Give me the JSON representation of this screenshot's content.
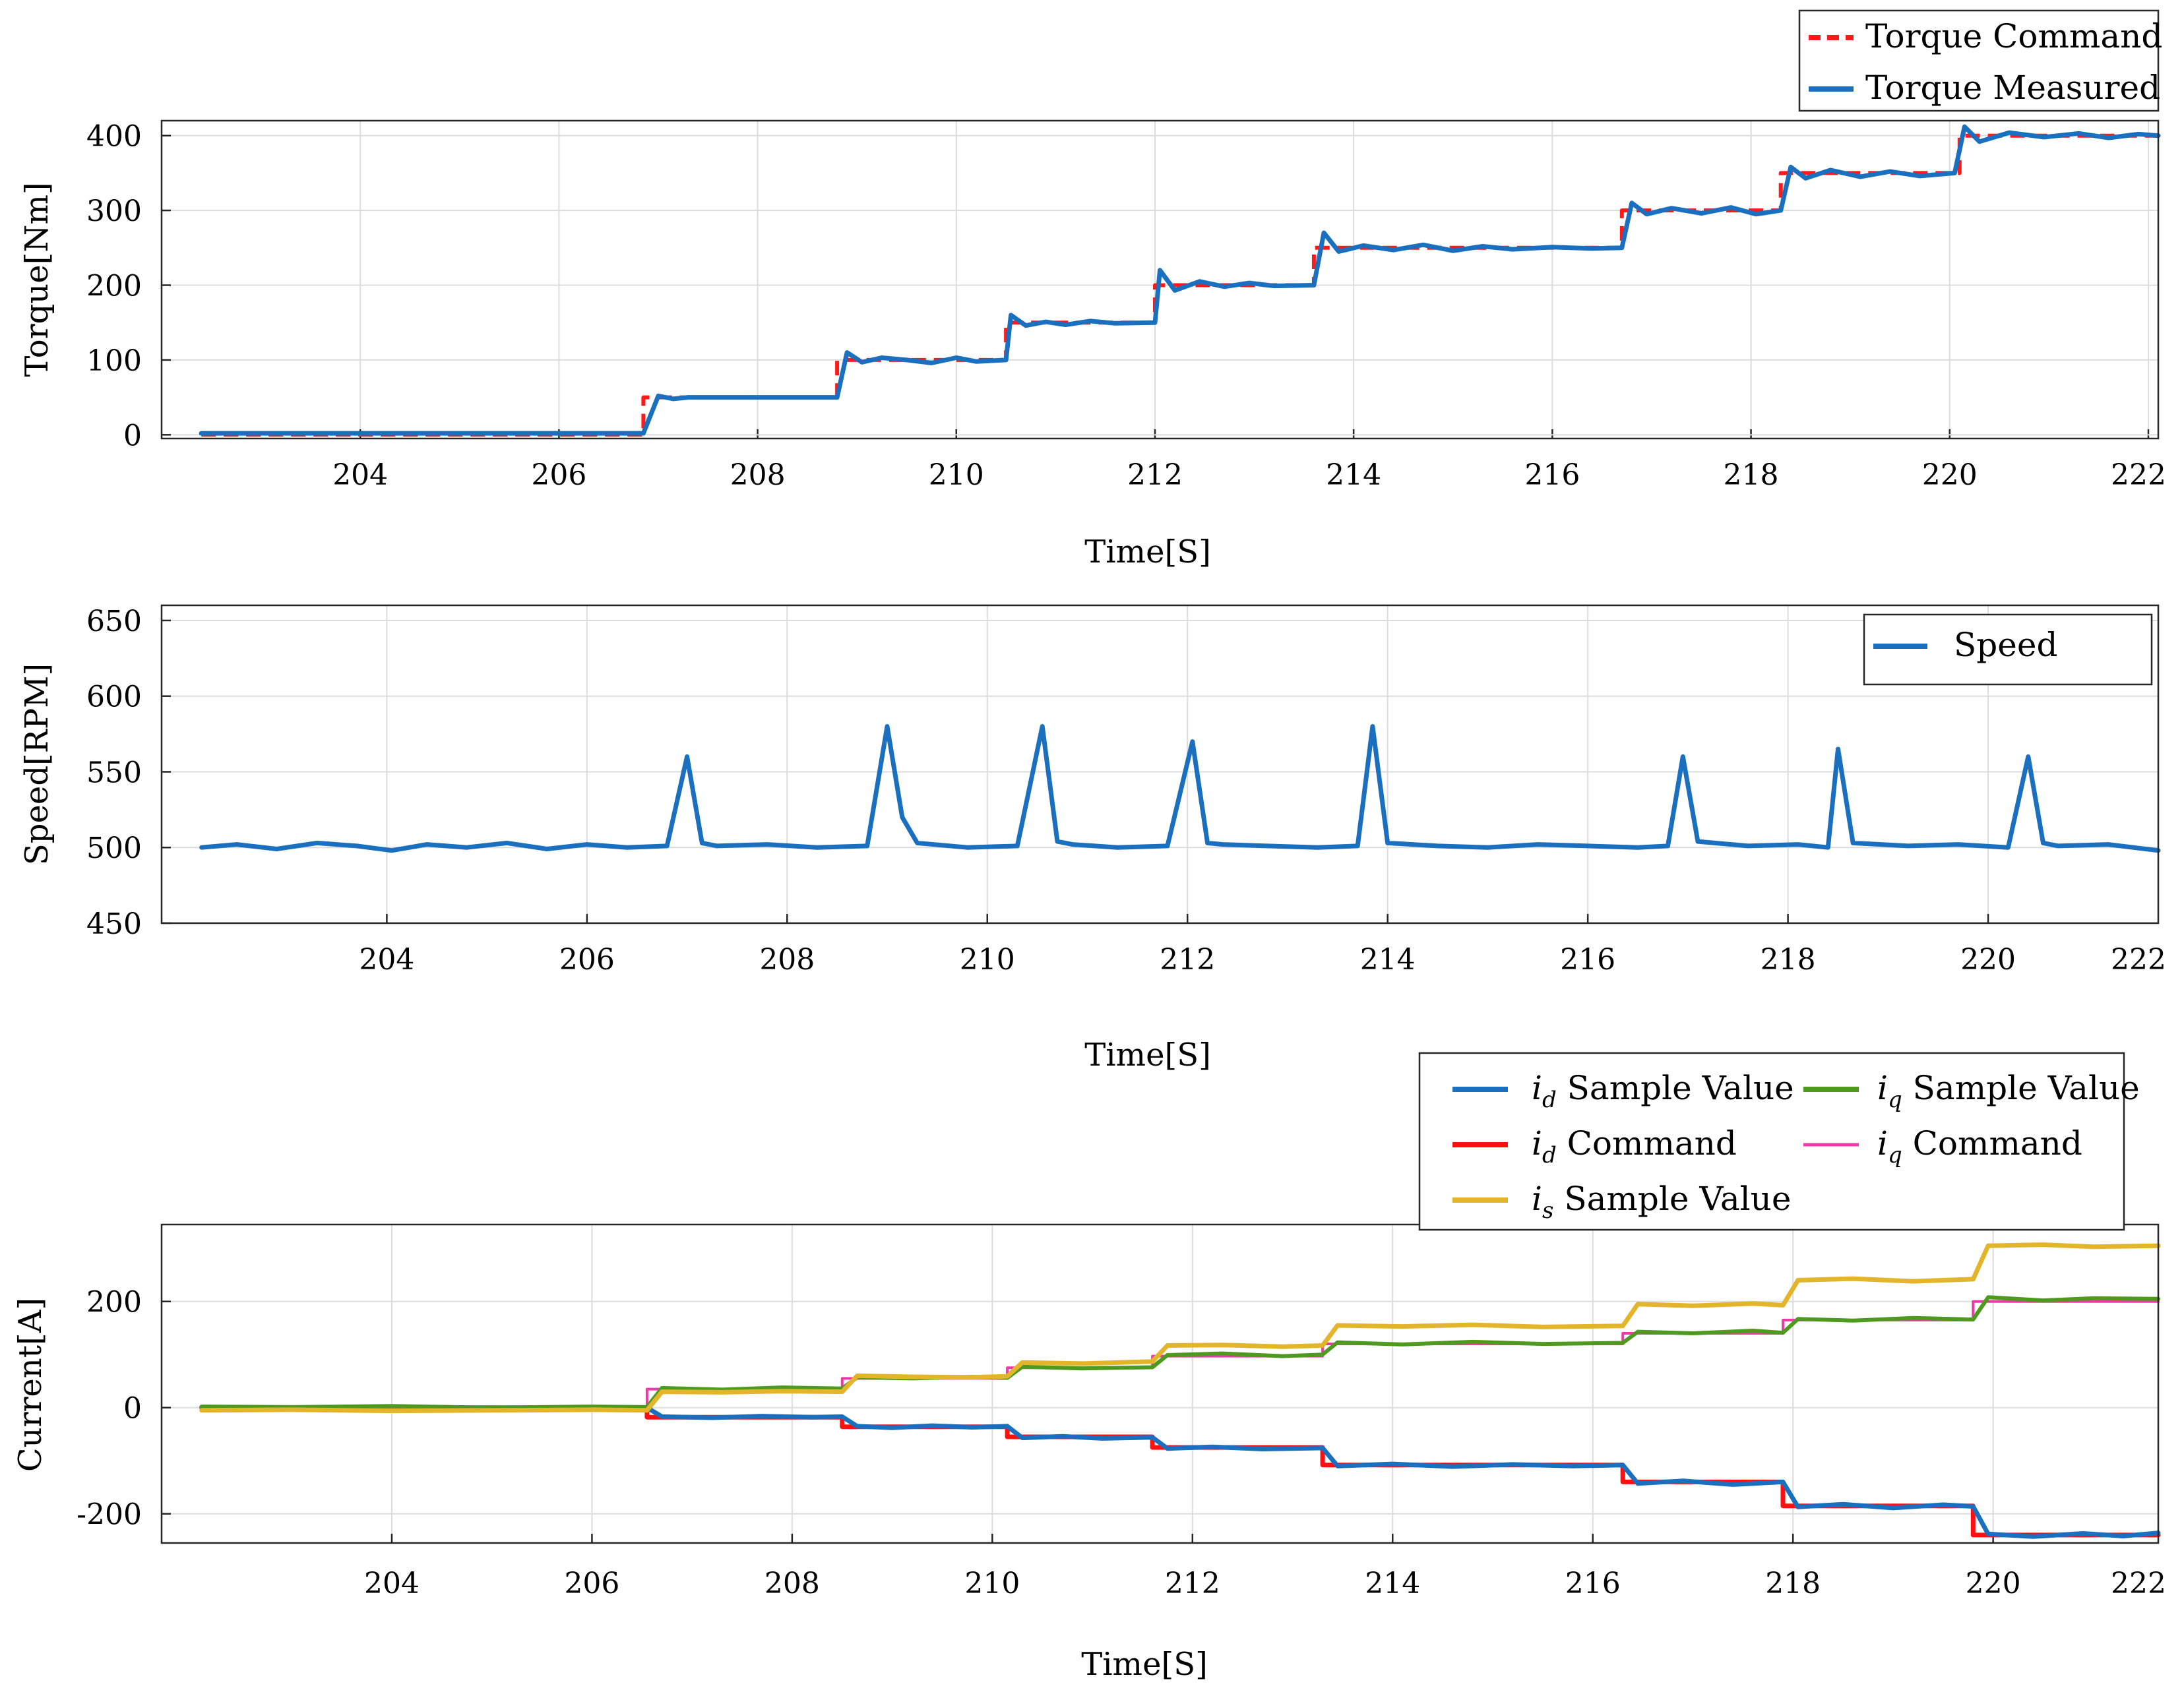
{
  "colors": {
    "torque_command": "#ff1a1a",
    "torque_measured": "#1a6fbf",
    "speed": "#1a6fbf",
    "id_sample": "#1a6fbf",
    "id_command": "#ff1010",
    "is_sample": "#e3b52a",
    "iq_sample": "#4e9a1f",
    "iq_command": "#ee3aa8"
  },
  "chart_data": [
    {
      "type": "line",
      "ylabel": "Torque[Nm]",
      "xlabel": "Time[S]",
      "xlim": [
        202.0,
        222.1
      ],
      "ylim": [
        -5,
        420
      ],
      "xticks": [
        {
          "value": 204,
          "label": "204"
        },
        {
          "value": 206,
          "label": "206"
        },
        {
          "value": 208,
          "label": "208"
        },
        {
          "value": 210,
          "label": "210"
        },
        {
          "value": 212,
          "label": "212"
        },
        {
          "value": 214,
          "label": "214"
        },
        {
          "value": 216,
          "label": "216"
        },
        {
          "value": 218,
          "label": "218"
        },
        {
          "value": 220,
          "label": "220"
        },
        {
          "value": 222,
          "label": "222"
        }
      ],
      "yticks": [
        {
          "value": 0,
          "label": "0"
        },
        {
          "value": 100,
          "label": "100"
        },
        {
          "value": 200,
          "label": "200"
        },
        {
          "value": 300,
          "label": "300"
        },
        {
          "value": 400,
          "label": "400"
        }
      ],
      "legend": {
        "placement": "top-right, outside above plot",
        "entries": [
          {
            "label": "Torque Command",
            "series": "cmd",
            "style": "dashed"
          },
          {
            "label": "Torque Measured",
            "series": "meas",
            "style": "solid"
          }
        ]
      },
      "series": [
        {
          "id": "cmd",
          "name": "Torque Command",
          "color_key": "torque_command",
          "dashed": true,
          "x": [
            202.4,
            206.85,
            206.85,
            208.8,
            208.8,
            210.5,
            210.5,
            212.0,
            212.0,
            213.6,
            213.6,
            216.7,
            216.7,
            218.3,
            218.3,
            220.1,
            220.1,
            222.1
          ],
          "y": [
            0,
            0,
            50,
            50,
            100,
            100,
            150,
            150,
            200,
            200,
            250,
            250,
            300,
            300,
            350,
            350,
            400,
            400
          ]
        },
        {
          "id": "meas",
          "name": "Torque Measured",
          "color_key": "torque_measured",
          "dashed": false,
          "x": [
            202.4,
            206.85,
            207.0,
            207.15,
            207.3,
            208.8,
            208.9,
            209.05,
            209.25,
            209.5,
            209.75,
            210.0,
            210.2,
            210.5,
            210.55,
            210.7,
            210.9,
            211.1,
            211.35,
            211.6,
            212.0,
            212.05,
            212.2,
            212.45,
            212.7,
            212.95,
            213.2,
            213.6,
            213.7,
            213.85,
            214.1,
            214.4,
            214.7,
            215.0,
            215.3,
            215.6,
            216.0,
            216.4,
            216.7,
            216.8,
            216.95,
            217.2,
            217.5,
            217.8,
            218.05,
            218.3,
            218.4,
            218.55,
            218.8,
            219.1,
            219.4,
            219.7,
            220.05,
            220.15,
            220.3,
            220.6,
            220.95,
            221.3,
            221.6,
            221.9,
            222.1
          ],
          "y": [
            2,
            2,
            52,
            48,
            50,
            50,
            110,
            97,
            103,
            100,
            96,
            103,
            98,
            100,
            160,
            146,
            151,
            147,
            152,
            149,
            150,
            220,
            193,
            205,
            198,
            203,
            199,
            200,
            270,
            245,
            253,
            247,
            254,
            246,
            252,
            248,
            251,
            249,
            250,
            310,
            295,
            303,
            296,
            304,
            295,
            300,
            358,
            343,
            354,
            345,
            352,
            346,
            350,
            412,
            392,
            404,
            398,
            403,
            397,
            402,
            400
          ]
        }
      ]
    },
    {
      "type": "line",
      "ylabel": "Speed[RPM]",
      "xlabel": "Time[S]",
      "xlim": [
        201.75,
        221.7
      ],
      "ylim": [
        450,
        660
      ],
      "xticks": [
        {
          "value": 204,
          "label": "204"
        },
        {
          "value": 206,
          "label": "206"
        },
        {
          "value": 208,
          "label": "208"
        },
        {
          "value": 210,
          "label": "210"
        },
        {
          "value": 212,
          "label": "212"
        },
        {
          "value": 214,
          "label": "214"
        },
        {
          "value": 216,
          "label": "216"
        },
        {
          "value": 218,
          "label": "218"
        },
        {
          "value": 220,
          "label": "220"
        },
        {
          "value": 222,
          "label": "222"
        }
      ],
      "yticks": [
        {
          "value": 450,
          "label": "450"
        },
        {
          "value": 500,
          "label": "500"
        },
        {
          "value": 550,
          "label": "550"
        },
        {
          "value": 600,
          "label": "600"
        },
        {
          "value": 650,
          "label": "650"
        }
      ],
      "legend": {
        "placement": "top-right",
        "entries": [
          {
            "label": "Speed",
            "series": "speed",
            "style": "solid"
          }
        ]
      },
      "series": [
        {
          "id": "speed",
          "name": "Speed",
          "color_key": "speed",
          "dashed": false,
          "x": [
            202.15,
            202.5,
            202.9,
            203.3,
            203.7,
            204.05,
            204.4,
            204.8,
            205.2,
            205.6,
            206.0,
            206.4,
            206.8,
            207.0,
            207.15,
            207.3,
            207.8,
            208.3,
            208.8,
            209.0,
            209.15,
            209.3,
            209.8,
            210.3,
            210.55,
            210.7,
            210.85,
            211.3,
            211.8,
            212.05,
            212.2,
            212.35,
            212.8,
            213.3,
            213.7,
            213.85,
            214.0,
            214.5,
            215.0,
            215.5,
            216.0,
            216.5,
            216.8,
            216.95,
            217.1,
            217.6,
            218.1,
            218.4,
            218.5,
            218.65,
            219.2,
            219.7,
            220.2,
            220.4,
            220.55,
            220.7,
            221.2,
            221.7
          ],
          "y": [
            500,
            502,
            499,
            503,
            501,
            498,
            502,
            500,
            503,
            499,
            502,
            500,
            501,
            560,
            503,
            501,
            502,
            500,
            501,
            580,
            520,
            503,
            500,
            501,
            580,
            504,
            502,
            500,
            501,
            570,
            503,
            502,
            501,
            500,
            501,
            580,
            503,
            501,
            500,
            502,
            501,
            500,
            501,
            560,
            504,
            501,
            502,
            500,
            565,
            503,
            501,
            502,
            500,
            560,
            503,
            501,
            502,
            498
          ]
        }
      ]
    },
    {
      "type": "line",
      "ylabel": "Current[A]",
      "xlabel": "Time[S]",
      "xlim": [
        201.7,
        221.65
      ],
      "ylim": [
        -255,
        345
      ],
      "xticks": [
        {
          "value": 204,
          "label": "204"
        },
        {
          "value": 206,
          "label": "206"
        },
        {
          "value": 208,
          "label": "208"
        },
        {
          "value": 210,
          "label": "210"
        },
        {
          "value": 212,
          "label": "212"
        },
        {
          "value": 214,
          "label": "214"
        },
        {
          "value": 216,
          "label": "216"
        },
        {
          "value": 218,
          "label": "218"
        },
        {
          "value": 220,
          "label": "220"
        },
        {
          "value": 222,
          "label": "222"
        }
      ],
      "yticks": [
        {
          "value": -200,
          "label": "-200"
        },
        {
          "value": 0,
          "label": "0"
        },
        {
          "value": 200,
          "label": "200"
        }
      ],
      "legend": {
        "placement": "top-right, outside above plot",
        "entries": [
          {
            "sub": "d",
            "label": "Sample Value",
            "series": "id_s"
          },
          {
            "sub": "q",
            "label": "Sample Value",
            "series": "iq_s"
          },
          {
            "sub": "d",
            "label": "Command",
            "series": "id_c"
          },
          {
            "sub": "q",
            "label": "Command",
            "series": "iq_c"
          },
          {
            "sub": "s",
            "label": "Sample Value",
            "series": "is_s"
          }
        ]
      },
      "series": [
        {
          "id": "id_c",
          "name": "id Command",
          "color_key": "id_command",
          "x": [
            202.1,
            206.55,
            206.55,
            208.5,
            208.5,
            210.15,
            210.15,
            211.6,
            211.6,
            213.3,
            213.3,
            216.3,
            216.3,
            217.9,
            217.9,
            219.8,
            219.8,
            221.65
          ],
          "y": [
            0,
            0,
            -18,
            -18,
            -36,
            -36,
            -55,
            -55,
            -75,
            -75,
            -108,
            -108,
            -140,
            -140,
            -185,
            -185,
            -240,
            -240
          ]
        },
        {
          "id": "id_s",
          "name": "id Sample Value",
          "color_key": "id_sample",
          "x": [
            202.1,
            203.0,
            204.0,
            205.0,
            206.0,
            206.55,
            206.7,
            207.2,
            207.7,
            208.2,
            208.5,
            208.65,
            209.0,
            209.4,
            209.8,
            210.15,
            210.3,
            210.7,
            211.1,
            211.6,
            211.75,
            212.2,
            212.7,
            213.3,
            213.45,
            214.0,
            214.6,
            215.2,
            215.8,
            216.3,
            216.45,
            216.9,
            217.4,
            217.9,
            218.05,
            218.5,
            219.0,
            219.5,
            219.8,
            219.95,
            220.4,
            220.9,
            221.3,
            221.65
          ],
          "y": [
            1,
            0,
            2,
            -1,
            1,
            0,
            -17,
            -19,
            -16,
            -18,
            -17,
            -35,
            -38,
            -34,
            -37,
            -35,
            -57,
            -54,
            -58,
            -56,
            -77,
            -74,
            -78,
            -76,
            -110,
            -106,
            -111,
            -107,
            -110,
            -108,
            -143,
            -138,
            -145,
            -140,
            -187,
            -182,
            -189,
            -183,
            -186,
            -238,
            -243,
            -237,
            -242,
            -236
          ]
        },
        {
          "id": "iq_c",
          "name": "iq Command",
          "color_key": "iq_command",
          "x": [
            202.1,
            206.55,
            206.55,
            208.5,
            208.5,
            210.15,
            210.15,
            211.6,
            211.6,
            213.3,
            213.3,
            216.3,
            216.3,
            217.9,
            217.9,
            219.8,
            219.8,
            221.65
          ],
          "y": [
            0,
            0,
            35,
            35,
            55,
            55,
            75,
            75,
            97,
            97,
            120,
            120,
            140,
            140,
            165,
            165,
            200,
            200
          ]
        },
        {
          "id": "iq_s",
          "name": "iq Sample Value",
          "color_key": "iq_sample",
          "x": [
            202.1,
            203.0,
            204.0,
            205.0,
            206.0,
            206.55,
            206.7,
            207.3,
            207.9,
            208.5,
            208.65,
            209.2,
            209.8,
            210.15,
            210.3,
            210.9,
            211.6,
            211.75,
            212.3,
            212.9,
            213.3,
            213.45,
            214.1,
            214.8,
            215.5,
            216.3,
            216.45,
            217.0,
            217.6,
            217.9,
            218.05,
            218.6,
            219.2,
            219.8,
            219.95,
            220.5,
            221.0,
            221.65
          ],
          "y": [
            2,
            1,
            3,
            0,
            2,
            1,
            37,
            34,
            38,
            36,
            57,
            55,
            58,
            56,
            77,
            74,
            76,
            99,
            102,
            97,
            100,
            123,
            119,
            124,
            120,
            122,
            143,
            140,
            145,
            141,
            167,
            164,
            169,
            166,
            208,
            202,
            206,
            205
          ]
        },
        {
          "id": "is_s",
          "name": "is Sample Value",
          "color_key": "is_sample",
          "x": [
            202.1,
            203.0,
            204.0,
            205.0,
            206.0,
            206.55,
            206.7,
            207.3,
            207.9,
            208.5,
            208.65,
            209.2,
            209.8,
            210.15,
            210.3,
            210.9,
            211.6,
            211.75,
            212.3,
            212.9,
            213.3,
            213.45,
            214.1,
            214.8,
            215.5,
            216.3,
            216.45,
            217.0,
            217.6,
            217.9,
            218.05,
            218.6,
            219.2,
            219.8,
            219.95,
            220.5,
            221.0,
            221.65
          ],
          "y": [
            -5,
            -4,
            -6,
            -5,
            -4,
            -5,
            30,
            29,
            31,
            30,
            60,
            58,
            57,
            59,
            85,
            83,
            87,
            117,
            118,
            115,
            117,
            155,
            153,
            156,
            152,
            154,
            195,
            192,
            196,
            193,
            240,
            243,
            238,
            242,
            305,
            307,
            303,
            305
          ]
        }
      ]
    }
  ]
}
